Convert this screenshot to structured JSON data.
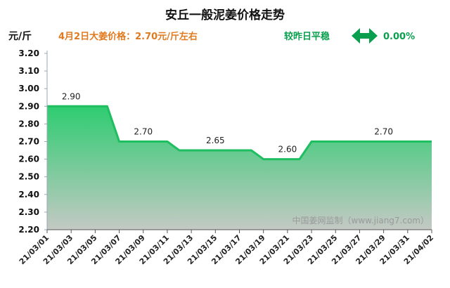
{
  "header": {
    "title": "安丘一般泥姜价格走势",
    "unit": "元/斤",
    "price_note": "4月2日大姜价格：2.70元/斤左右",
    "compare_label": "较昨日平稳",
    "change": "0.00%",
    "watermark": "中国姜网监制（www.jiang7.com）"
  },
  "colors": {
    "accent_orange": "#e07a1f",
    "accent_green": "#0a9f4f",
    "line": "#1fbe60",
    "fill_top": "#2ecc71",
    "fill_bottom": "#c4c9c4"
  },
  "icons": {
    "compare": "double-arrow-icon"
  },
  "chart_data": {
    "type": "area",
    "title": "安丘一般泥姜价格走势",
    "ylabel": "元/斤",
    "xlabel": "",
    "ylim": [
      2.2,
      3.2
    ],
    "yticks": [
      2.2,
      2.3,
      2.4,
      2.5,
      2.6,
      2.7,
      2.8,
      2.9,
      3.0,
      3.1,
      3.2
    ],
    "ytick_labels": [
      "2.20",
      "2.30",
      "2.40",
      "2.50",
      "2.60",
      "2.70",
      "2.80",
      "2.90",
      "3.00",
      "3.10",
      "3.20"
    ],
    "x": [
      "21/03/01",
      "21/03/02",
      "21/03/03",
      "21/03/04",
      "21/03/05",
      "21/03/06",
      "21/03/07",
      "21/03/08",
      "21/03/09",
      "21/03/10",
      "21/03/11",
      "21/03/12",
      "21/03/13",
      "21/03/14",
      "21/03/15",
      "21/03/16",
      "21/03/17",
      "21/03/18",
      "21/03/19",
      "21/03/20",
      "21/03/21",
      "21/03/22",
      "21/03/23",
      "21/03/24",
      "21/03/25",
      "21/03/26",
      "21/03/27",
      "21/03/28",
      "21/03/29",
      "21/03/30",
      "21/03/31",
      "21/04/01",
      "21/04/02"
    ],
    "values": [
      2.9,
      2.9,
      2.9,
      2.9,
      2.9,
      2.9,
      2.7,
      2.7,
      2.7,
      2.7,
      2.7,
      2.65,
      2.65,
      2.65,
      2.65,
      2.65,
      2.65,
      2.65,
      2.6,
      2.6,
      2.6,
      2.6,
      2.7,
      2.7,
      2.7,
      2.7,
      2.7,
      2.7,
      2.7,
      2.7,
      2.7,
      2.7,
      2.7
    ],
    "xtick_labels": [
      "21/03/01",
      "21/03/03",
      "21/03/05",
      "21/03/07",
      "21/03/09",
      "21/03/11",
      "21/03/13",
      "21/03/15",
      "21/03/17",
      "21/03/19",
      "21/03/21",
      "21/03/23",
      "21/03/25",
      "21/03/27",
      "21/03/29",
      "21/03/31",
      "21/04/02"
    ],
    "data_labels": [
      {
        "x": "21/03/03",
        "y": 2.9,
        "text": "2.90"
      },
      {
        "x": "21/03/09",
        "y": 2.7,
        "text": "2.70"
      },
      {
        "x": "21/03/15",
        "y": 2.65,
        "text": "2.65"
      },
      {
        "x": "21/03/21",
        "y": 2.6,
        "text": "2.60"
      },
      {
        "x": "21/03/29",
        "y": 2.7,
        "text": "2.70"
      }
    ],
    "grid": false,
    "legend": "none"
  }
}
